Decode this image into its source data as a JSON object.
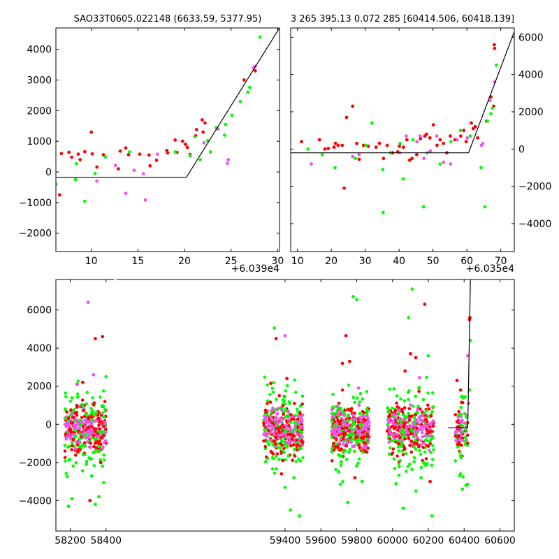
{
  "chart_data": [
    {
      "panel": "top-left",
      "type": "scatter",
      "title": "SAO33T0605.022148 (6633.59, 5377.95)",
      "axis_offset": "+6.039e4",
      "xlim": [
        6.2,
        30.2
      ],
      "ylim": [
        -2600,
        4700
      ],
      "x_ticks": [
        10,
        15,
        20,
        25,
        30
      ],
      "y_ticks": [
        -2000,
        -1000,
        0,
        1000,
        2000,
        3000,
        4000
      ],
      "y_tick_side": "left",
      "model_line": [
        [
          6.2,
          -180
        ],
        [
          20.2,
          -180
        ],
        [
          30.2,
          4700
        ]
      ],
      "series": [
        {
          "color": "#ff0000",
          "points": [
            [
              6.6,
              -750
            ],
            [
              6.8,
              600
            ],
            [
              7.6,
              640
            ],
            [
              7.9,
              480
            ],
            [
              8.6,
              580
            ],
            [
              8.8,
              400
            ],
            [
              9.3,
              660
            ],
            [
              10.0,
              1300
            ],
            [
              10.1,
              590
            ],
            [
              10.6,
              160
            ],
            [
              11.3,
              560
            ],
            [
              12.9,
              100
            ],
            [
              13.1,
              680
            ],
            [
              13.7,
              780
            ],
            [
              14.0,
              560
            ],
            [
              15.2,
              580
            ],
            [
              16.2,
              550
            ],
            [
              16.3,
              200
            ],
            [
              17.0,
              380
            ],
            [
              18.1,
              700
            ],
            [
              18.2,
              620
            ],
            [
              19.0,
              1040
            ],
            [
              19.2,
              640
            ],
            [
              19.8,
              1000
            ],
            [
              20.1,
              900
            ],
            [
              20.3,
              800
            ],
            [
              20.6,
              570
            ],
            [
              21.2,
              1180
            ],
            [
              21.3,
              1380
            ],
            [
              21.9,
              1700
            ],
            [
              22.0,
              1300
            ],
            [
              22.2,
              1600
            ],
            [
              26.4,
              3000
            ],
            [
              27.6,
              3300
            ]
          ]
        },
        {
          "color": "#00ff00",
          "points": [
            [
              6.2,
              -400
            ],
            [
              8.3,
              -250
            ],
            [
              8.4,
              270
            ],
            [
              9.3,
              -960
            ],
            [
              10.4,
              -50
            ],
            [
              11.5,
              490
            ],
            [
              14.1,
              650
            ],
            [
              19.0,
              650
            ],
            [
              20.6,
              530
            ],
            [
              21.1,
              1150
            ],
            [
              21.7,
              400
            ],
            [
              22.5,
              1020
            ],
            [
              22.8,
              650
            ],
            [
              23.4,
              1440
            ],
            [
              24.3,
              1200
            ],
            [
              24.4,
              1550
            ],
            [
              25.1,
              1850
            ],
            [
              26.0,
              2300
            ],
            [
              26.8,
              2600
            ],
            [
              27.0,
              2760
            ],
            [
              28.1,
              4400
            ]
          ]
        },
        {
          "color": "#ee55ee",
          "points": [
            [
              10.6,
              -300
            ],
            [
              12.6,
              210
            ],
            [
              13.7,
              -700
            ],
            [
              14.6,
              50
            ],
            [
              15.6,
              -60
            ],
            [
              15.8,
              -920
            ],
            [
              17.1,
              580
            ],
            [
              22.1,
              950
            ],
            [
              23.6,
              1400
            ],
            [
              24.6,
              280
            ],
            [
              24.7,
              400
            ],
            [
              27.4,
              3400
            ],
            [
              27.6,
              3450
            ]
          ]
        }
      ]
    },
    {
      "panel": "top-right",
      "type": "scatter",
      "title": "3 265 395.13 0.072 285 [60414.506, 60418.139]",
      "axis_offset": "+6.035e4",
      "xlim": [
        8,
        74
      ],
      "ylim": [
        -5500,
        6500
      ],
      "x_ticks": [
        10,
        20,
        30,
        40,
        50,
        60,
        70
      ],
      "y_ticks": [
        -4000,
        -2000,
        0,
        2000,
        4000,
        6000
      ],
      "y_tick_side": "right",
      "model_line": [
        [
          8,
          -200
        ],
        [
          60.5,
          -200
        ],
        [
          74,
          6300
        ]
      ],
      "series": [
        {
          "color": "#ff0000",
          "points": [
            [
              11.2,
              400
            ],
            [
              16.5,
              500
            ],
            [
              18.1,
              0
            ],
            [
              19.1,
              30
            ],
            [
              20.8,
              100
            ],
            [
              21.2,
              310
            ],
            [
              22.0,
              200
            ],
            [
              23.2,
              200
            ],
            [
              23.8,
              -2100
            ],
            [
              24.5,
              1700
            ],
            [
              26.3,
              2300
            ],
            [
              27.5,
              300
            ],
            [
              28.2,
              -550
            ],
            [
              29.5,
              200
            ],
            [
              30.9,
              150
            ],
            [
              33.2,
              100
            ],
            [
              34.2,
              310
            ],
            [
              35.4,
              -500
            ],
            [
              36.5,
              200
            ],
            [
              38.1,
              -200
            ],
            [
              39.6,
              -150
            ],
            [
              40.1,
              150
            ],
            [
              41.3,
              100
            ],
            [
              42.3,
              500
            ],
            [
              43.1,
              -600
            ],
            [
              43.8,
              -500
            ],
            [
              45.2,
              -300
            ],
            [
              46.3,
              560
            ],
            [
              47.6,
              700
            ],
            [
              48.1,
              800
            ],
            [
              49.1,
              600
            ],
            [
              50.1,
              1300
            ],
            [
              51.2,
              200
            ],
            [
              52.1,
              500
            ],
            [
              53.1,
              300
            ],
            [
              54.1,
              -200
            ],
            [
              55.1,
              700
            ],
            [
              56.5,
              500
            ],
            [
              58.2,
              700
            ],
            [
              59.1,
              1000
            ],
            [
              59.8,
              400
            ],
            [
              61.3,
              1400
            ],
            [
              61.9,
              1100
            ],
            [
              62.5,
              1200
            ],
            [
              63.2,
              600
            ],
            [
              65.8,
              1500
            ],
            [
              67.1,
              2800
            ],
            [
              67.9,
              2300
            ],
            [
              68.1,
              5600
            ],
            [
              68.2,
              5400
            ]
          ]
        },
        {
          "color": "#00ff00",
          "points": [
            [
              13.1,
              0
            ],
            [
              17.3,
              -300
            ],
            [
              21.1,
              -1000
            ],
            [
              27.1,
              -500
            ],
            [
              30.2,
              200
            ],
            [
              32.0,
              1400
            ],
            [
              35.2,
              -1100
            ],
            [
              35.3,
              -3400
            ],
            [
              37.4,
              -200
            ],
            [
              40.3,
              300
            ],
            [
              41.2,
              -1600
            ],
            [
              44.1,
              500
            ],
            [
              47.2,
              -3100
            ],
            [
              48.3,
              -200
            ],
            [
              52.1,
              -800
            ],
            [
              55.3,
              400
            ],
            [
              58.1,
              1000
            ],
            [
              61.0,
              700
            ],
            [
              64.2,
              -1000
            ],
            [
              65.3,
              -3100
            ],
            [
              66.1,
              1500
            ],
            [
              67.1,
              1900
            ],
            [
              67.6,
              2200
            ],
            [
              68.7,
              4500
            ]
          ]
        },
        {
          "color": "#ee55ee",
          "points": [
            [
              14.1,
              -800
            ],
            [
              26.3,
              -400
            ],
            [
              28.2,
              -300
            ],
            [
              40.2,
              -200
            ],
            [
              42.1,
              700
            ],
            [
              45.3,
              400
            ],
            [
              46.2,
              700
            ],
            [
              47.3,
              -500
            ],
            [
              49.2,
              -100
            ],
            [
              51.1,
              700
            ],
            [
              53.1,
              -700
            ],
            [
              55.2,
              -800
            ],
            [
              57.1,
              500
            ],
            [
              60.1,
              600
            ],
            [
              64.3,
              200
            ],
            [
              64.7,
              300
            ],
            [
              66.8,
              2600
            ],
            [
              68.2,
              3600
            ]
          ]
        }
      ]
    },
    {
      "panel": "bottom",
      "type": "scatter",
      "xlim": [
        58120,
        60680
      ],
      "ylim": [
        -5600,
        7600
      ],
      "x_ticks": [
        58200,
        58400,
        59400,
        59600,
        59800,
        60000,
        60200,
        60400,
        60600
      ],
      "y_ticks": [
        -4000,
        -2000,
        0,
        2000,
        4000,
        6000
      ],
      "y_tick_side": "left",
      "x_axis_break": [
        58430,
        59270
      ],
      "model_line": [
        [
          60310,
          -180
        ],
        [
          60420,
          -180
        ],
        [
          60435,
          7600
        ]
      ],
      "clusters": [
        {
          "x_range": [
            58170,
            58400
          ],
          "count": 140
        },
        {
          "x_range": [
            59280,
            59500
          ],
          "count": 140
        },
        {
          "x_range": [
            59660,
            59870
          ],
          "count": 140
        },
        {
          "x_range": [
            59970,
            60230
          ],
          "count": 140
        },
        {
          "x_range": [
            60350,
            60420
          ],
          "count": 30
        }
      ],
      "series": [
        {
          "color": "#00ff00",
          "points": [
            [
              58190,
              -4300
            ],
            [
              58210,
              -3900
            ],
            [
              58290,
              -2100
            ],
            [
              58320,
              -2700
            ],
            [
              58340,
              -4200
            ],
            [
              58360,
              -3800
            ],
            [
              58380,
              -2200
            ],
            [
              58400,
              2500
            ],
            [
              59340,
              5050
            ],
            [
              59400,
              -3300
            ],
            [
              59430,
              -4500
            ],
            [
              59450,
              -2800
            ],
            [
              59480,
              -4800
            ],
            [
              59700,
              -2500
            ],
            [
              59750,
              -4100
            ],
            [
              59780,
              6700
            ],
            [
              59800,
              6550
            ],
            [
              59830,
              -3000
            ],
            [
              60060,
              -4400
            ],
            [
              60090,
              5600
            ],
            [
              60110,
              7100
            ],
            [
              60130,
              -3500
            ],
            [
              60160,
              -2800
            ],
            [
              60200,
              3600
            ],
            [
              60220,
              -4800
            ],
            [
              60380,
              -2600
            ],
            [
              60390,
              -3400
            ],
            [
              60410,
              -3200
            ],
            [
              60420,
              -3150
            ],
            [
              60425,
              1100
            ],
            [
              60430,
              1800
            ],
            [
              60435,
              4400
            ]
          ]
        },
        {
          "color": "#ff0000",
          "points": [
            [
              58270,
              2200
            ],
            [
              58310,
              -4000
            ],
            [
              58340,
              4500
            ],
            [
              58370,
              -2000
            ],
            [
              58380,
              4600
            ],
            [
              59320,
              2150
            ],
            [
              59350,
              4500
            ],
            [
              59380,
              -2600
            ],
            [
              59410,
              2400
            ],
            [
              59720,
              3200
            ],
            [
              59740,
              4650
            ],
            [
              59760,
              3300
            ],
            [
              59790,
              -2800
            ],
            [
              60070,
              2800
            ],
            [
              60100,
              3700
            ],
            [
              60130,
              3500
            ],
            [
              60180,
              6300
            ],
            [
              60210,
              -3000
            ],
            [
              60360,
              2300
            ],
            [
              60370,
              -600
            ],
            [
              60380,
              1800
            ],
            [
              60430,
              5500
            ],
            [
              60432,
              5600
            ]
          ]
        },
        {
          "color": "#ee55ee",
          "points": [
            [
              58240,
              2100
            ],
            [
              58300,
              6400
            ],
            [
              58330,
              2600
            ],
            [
              59400,
              4650
            ],
            [
              59810,
              1900
            ],
            [
              60150,
              2450
            ],
            [
              60420,
              3600
            ],
            [
              60425,
              1100
            ]
          ]
        }
      ]
    }
  ]
}
